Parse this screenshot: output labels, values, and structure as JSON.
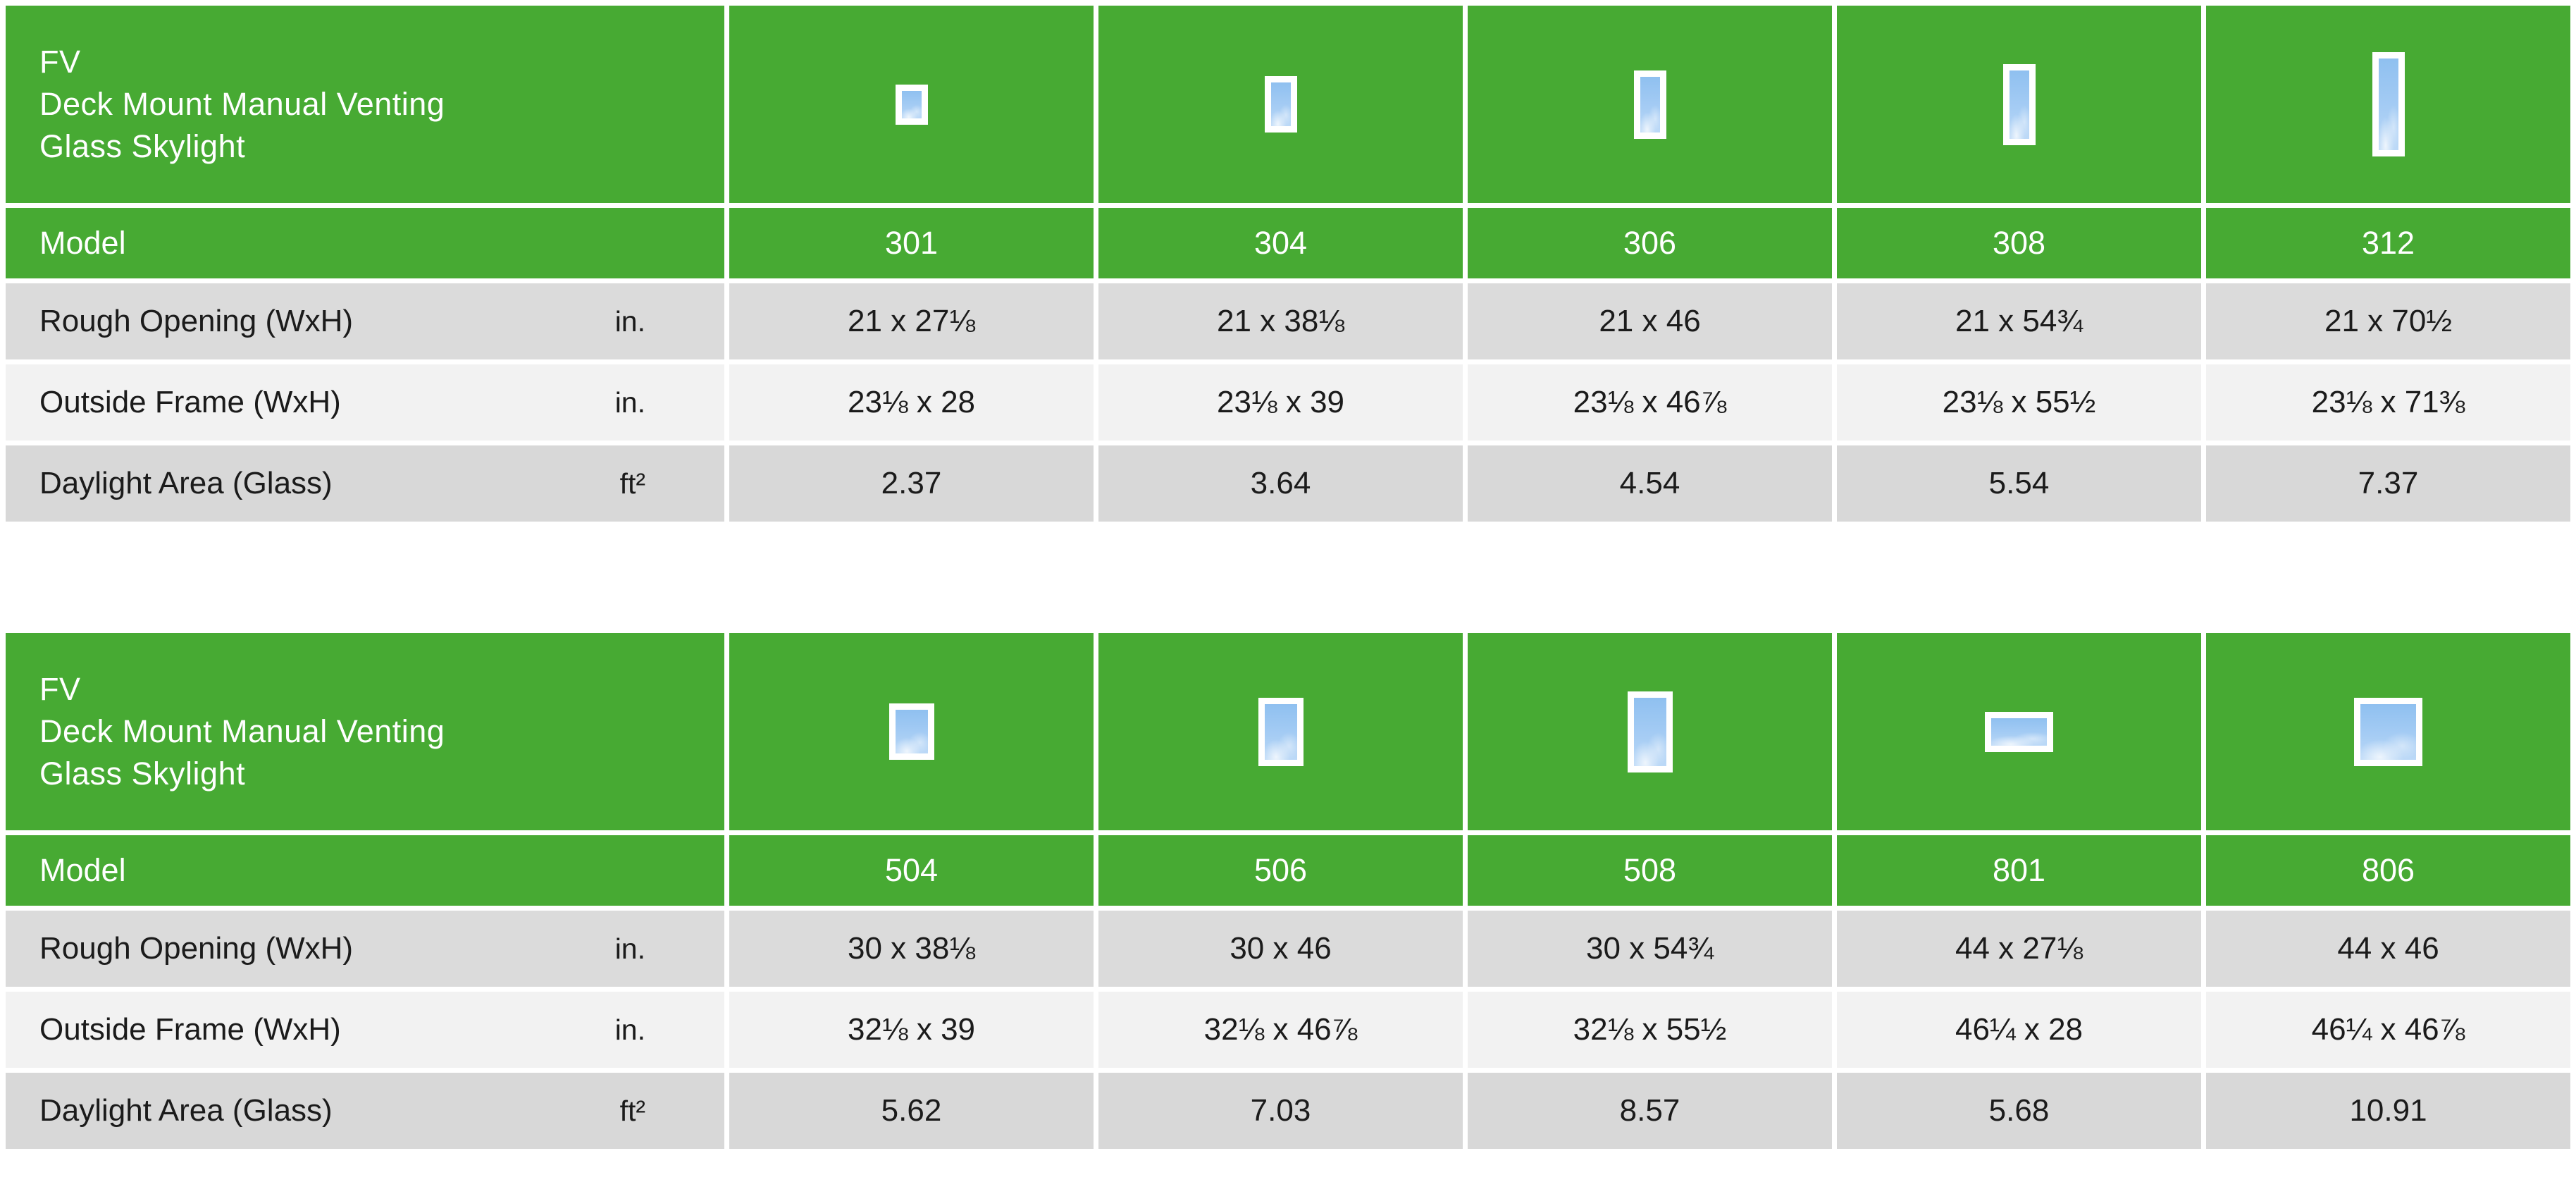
{
  "theme": {
    "green": "#47aa33",
    "row_gray_dark": "#dbdbdb",
    "row_gray_light": "#f2f2f2",
    "row_gray_bottom": "#d8d8d8",
    "sky_blue": "#a5ccf4",
    "text": "#1b1b1b"
  },
  "tables": [
    {
      "title_lines": [
        "FV",
        "Deck Mount Manual Venting",
        "Glass Skylight"
      ],
      "model_label": "Model",
      "rows": {
        "rough": {
          "label": "Rough Opening (WxH)",
          "unit": "in."
        },
        "outside": {
          "label": "Outside Frame (WxH)",
          "unit": "in."
        },
        "daylight": {
          "label": "Daylight Area (Glass)",
          "unit": "ft²"
        }
      },
      "columns": [
        {
          "model": "301",
          "icon": "skylight-301",
          "rough": "21 x 27⅛",
          "outside": "23⅛ x 28",
          "daylight": "2.37"
        },
        {
          "model": "304",
          "icon": "skylight-304",
          "rough": "21 x 38⅛",
          "outside": "23⅛ x 39",
          "daylight": "3.64"
        },
        {
          "model": "306",
          "icon": "skylight-306",
          "rough": "21 x 46",
          "outside": "23⅛ x 46⅞",
          "daylight": "4.54"
        },
        {
          "model": "308",
          "icon": "skylight-308",
          "rough": "21 x 54¾",
          "outside": "23⅛ x 55½",
          "daylight": "5.54"
        },
        {
          "model": "312",
          "icon": "skylight-312",
          "rough": "21 x 70½",
          "outside": "23⅛ x 71⅜",
          "daylight": "7.37"
        }
      ]
    },
    {
      "title_lines": [
        "FV",
        "Deck Mount Manual Venting",
        "Glass Skylight"
      ],
      "model_label": "Model",
      "rows": {
        "rough": {
          "label": "Rough Opening (WxH)",
          "unit": "in."
        },
        "outside": {
          "label": "Outside Frame (WxH)",
          "unit": "in."
        },
        "daylight": {
          "label": "Daylight Area (Glass)",
          "unit": "ft²"
        }
      },
      "columns": [
        {
          "model": "504",
          "icon": "skylight-504",
          "rough": "30 x 38⅛",
          "outside": "32⅛ x 39",
          "daylight": "5.62"
        },
        {
          "model": "506",
          "icon": "skylight-506",
          "rough": "30 x 46",
          "outside": "32⅛ x 46⅞",
          "daylight": "7.03"
        },
        {
          "model": "508",
          "icon": "skylight-508",
          "rough": "30 x 54¾",
          "outside": "32⅛ x 55½",
          "daylight": "8.57"
        },
        {
          "model": "801",
          "icon": "skylight-801",
          "rough": "44 x 27⅛",
          "outside": "46¼ x 28",
          "daylight": "5.68"
        },
        {
          "model": "806",
          "icon": "skylight-806",
          "rough": "44 x 46",
          "outside": "46¼ x 46⅞",
          "daylight": "10.91"
        }
      ]
    }
  ]
}
